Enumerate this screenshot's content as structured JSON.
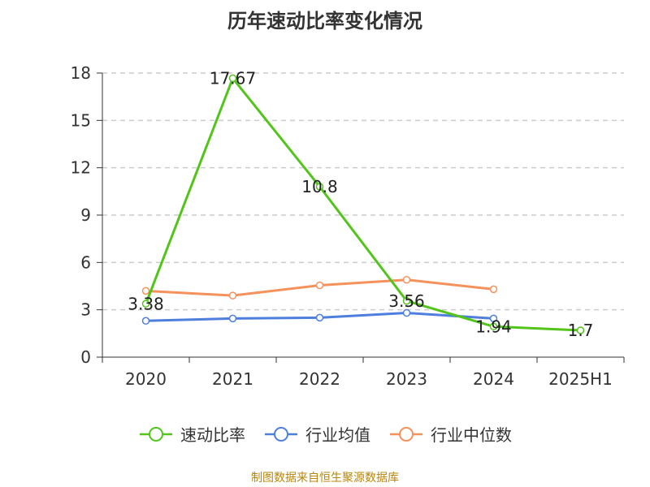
{
  "chart_data": {
    "type": "line",
    "title": "历年速动比率变化情况",
    "categories": [
      "2020",
      "2021",
      "2022",
      "2023",
      "2024",
      "2025H1"
    ],
    "ylim": [
      0,
      18
    ],
    "yticks": [
      0,
      3,
      6,
      9,
      12,
      15,
      18
    ],
    "grid": true,
    "legend_position": "bottom",
    "series": [
      {
        "name": "速动比率",
        "color": "#52c41a",
        "values": [
          3.38,
          17.67,
          10.8,
          3.56,
          1.94,
          1.7
        ],
        "labels": [
          "3.38",
          "17.67",
          "10.8",
          "3.56",
          "1.94",
          "1.7"
        ]
      },
      {
        "name": "行业均值",
        "color": "#4e7fdc",
        "values": [
          2.3,
          2.45,
          2.5,
          2.8,
          2.45,
          null
        ],
        "labels": []
      },
      {
        "name": "行业中位数",
        "color": "#f5915b",
        "values": [
          4.2,
          3.9,
          4.55,
          4.9,
          4.3,
          null
        ],
        "labels": []
      }
    ]
  },
  "footer": {
    "source": "制图数据来自恒生聚源数据库"
  }
}
